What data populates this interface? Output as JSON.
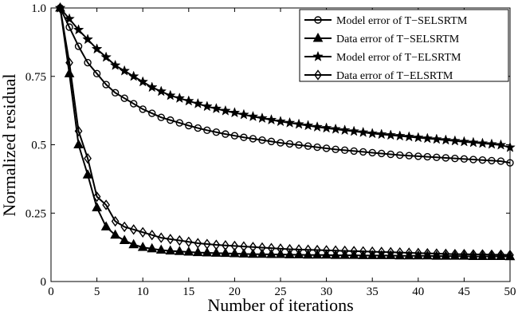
{
  "chart_data": {
    "type": "line",
    "xlabel": "Number of iterations",
    "ylabel": "Normalized residual",
    "xlim": [
      0,
      50
    ],
    "ylim": [
      0,
      1
    ],
    "xticks": [
      0,
      5,
      10,
      15,
      20,
      25,
      30,
      35,
      40,
      45,
      50
    ],
    "xtick_labels": [
      "0",
      "5",
      "10",
      "15",
      "20",
      "25",
      "30",
      "35",
      "40",
      "45",
      "50"
    ],
    "yticks": [
      0,
      0.25,
      0.5,
      0.75,
      1
    ],
    "ytick_labels": [
      "0",
      "0.25",
      "0.5",
      "0.75",
      "1.0"
    ],
    "grid": false,
    "legend_position": "top-right",
    "x": [
      1,
      2,
      3,
      4,
      5,
      6,
      7,
      8,
      9,
      10,
      11,
      12,
      13,
      14,
      15,
      16,
      17,
      18,
      19,
      20,
      21,
      22,
      23,
      24,
      25,
      26,
      27,
      28,
      29,
      30,
      31,
      32,
      33,
      34,
      35,
      36,
      37,
      38,
      39,
      40,
      41,
      42,
      43,
      44,
      45,
      46,
      47,
      48,
      49,
      50
    ],
    "series": [
      {
        "name": "Model error of T−SELSRTM",
        "marker": "circle",
        "values": [
          1.0,
          0.93,
          0.86,
          0.8,
          0.76,
          0.72,
          0.69,
          0.67,
          0.65,
          0.63,
          0.615,
          0.6,
          0.59,
          0.58,
          0.57,
          0.561,
          0.553,
          0.546,
          0.539,
          0.533,
          0.527,
          0.522,
          0.517,
          0.512,
          0.507,
          0.503,
          0.499,
          0.495,
          0.491,
          0.487,
          0.483,
          0.48,
          0.477,
          0.474,
          0.471,
          0.468,
          0.465,
          0.462,
          0.46,
          0.458,
          0.456,
          0.454,
          0.452,
          0.45,
          0.448,
          0.446,
          0.444,
          0.442,
          0.44,
          0.434
        ]
      },
      {
        "name": "Data error of T−SELSRTM",
        "marker": "triangle",
        "values": [
          1.0,
          0.76,
          0.5,
          0.39,
          0.27,
          0.2,
          0.17,
          0.15,
          0.135,
          0.125,
          0.12,
          0.115,
          0.112,
          0.11,
          0.108,
          0.106,
          0.105,
          0.104,
          0.103,
          0.102,
          0.101,
          0.1,
          0.1,
          0.099,
          0.099,
          0.098,
          0.098,
          0.097,
          0.097,
          0.097,
          0.096,
          0.096,
          0.096,
          0.095,
          0.095,
          0.095,
          0.095,
          0.094,
          0.094,
          0.094,
          0.094,
          0.093,
          0.093,
          0.093,
          0.093,
          0.092,
          0.092,
          0.092,
          0.092,
          0.091
        ]
      },
      {
        "name": "Model error of T−ELSRTM",
        "marker": "star",
        "values": [
          1.0,
          0.96,
          0.92,
          0.885,
          0.85,
          0.82,
          0.79,
          0.77,
          0.75,
          0.73,
          0.71,
          0.695,
          0.68,
          0.67,
          0.66,
          0.65,
          0.64,
          0.632,
          0.624,
          0.617,
          0.61,
          0.603,
          0.597,
          0.591,
          0.585,
          0.58,
          0.575,
          0.57,
          0.565,
          0.561,
          0.557,
          0.553,
          0.549,
          0.545,
          0.541,
          0.538,
          0.535,
          0.532,
          0.529,
          0.526,
          0.523,
          0.52,
          0.517,
          0.514,
          0.511,
          0.508,
          0.505,
          0.502,
          0.499,
          0.49
        ]
      },
      {
        "name": "Data error of T−ELSRTM",
        "marker": "diamond",
        "values": [
          1.0,
          0.8,
          0.55,
          0.45,
          0.31,
          0.28,
          0.22,
          0.2,
          0.19,
          0.18,
          0.17,
          0.16,
          0.155,
          0.15,
          0.145,
          0.14,
          0.137,
          0.134,
          0.132,
          0.13,
          0.128,
          0.126,
          0.124,
          0.122,
          0.12,
          0.118,
          0.117,
          0.116,
          0.115,
          0.114,
          0.113,
          0.112,
          0.111,
          0.11,
          0.109,
          0.108,
          0.107,
          0.106,
          0.105,
          0.104,
          0.103,
          0.102,
          0.101,
          0.1,
          0.1,
          0.099,
          0.099,
          0.098,
          0.098,
          0.097
        ]
      }
    ]
  }
}
